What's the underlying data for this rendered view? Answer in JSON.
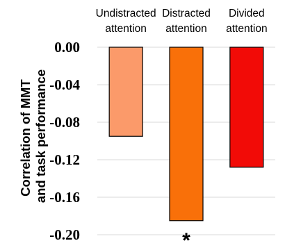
{
  "chart_data": {
    "type": "bar",
    "ylabel": "Correlation of MMT and task performance",
    "ylabel_lines": [
      "Correlation of MMT",
      "and task performance"
    ],
    "categories": [
      "Undistracted attention",
      "Distracted attention",
      "Divided attention"
    ],
    "category_lines": [
      [
        "Undistracted",
        "attention"
      ],
      [
        "Distracted",
        "attention"
      ],
      [
        "Divided",
        "attention"
      ]
    ],
    "values": [
      -0.095,
      -0.185,
      -0.128
    ],
    "colors": [
      "#fb9a6a",
      "#f97009",
      "#f20b07"
    ],
    "ylim": [
      -0.2,
      0.0
    ],
    "yticks": [
      0.0,
      -0.04,
      -0.08,
      -0.12,
      -0.16,
      -0.2
    ],
    "ytick_labels": [
      "0.00",
      "-0.04",
      "-0.08",
      "-0.12",
      "-0.16",
      "-0.20"
    ],
    "grid": true,
    "annotations": [
      {
        "category": "Distracted attention",
        "text": "*"
      }
    ]
  }
}
